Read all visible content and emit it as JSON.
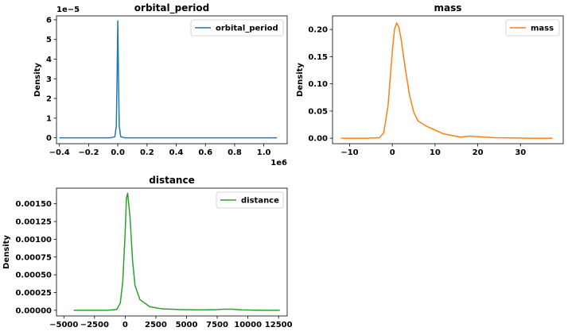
{
  "chart_data": [
    {
      "type": "line",
      "title": "orbital_period",
      "ylabel": "Density",
      "xlabel": "",
      "x_offset_label": "1e6",
      "y_offset_label": "1e−5",
      "xlim": [
        -0.42,
        1.16
      ],
      "ylim": [
        -0.3,
        6.2
      ],
      "xticks": [
        -0.4,
        -0.2,
        0.0,
        0.2,
        0.4,
        0.6,
        0.8,
        1.0
      ],
      "xtick_labels": [
        "−0.4",
        "−0.2",
        "0.0",
        "0.2",
        "0.4",
        "0.6",
        "0.8",
        "1.0"
      ],
      "yticks": [
        0,
        1,
        2,
        3,
        4,
        5,
        6
      ],
      "ytick_labels": [
        "0",
        "1",
        "2",
        "3",
        "4",
        "5",
        "6"
      ],
      "legend_position": "upper right",
      "series": [
        {
          "name": "orbital_period",
          "color": "#1f77b4",
          "x": [
            -0.4,
            -0.2,
            -0.05,
            -0.02,
            -0.01,
            -0.005,
            0.0,
            0.005,
            0.01,
            0.02,
            0.05,
            0.2,
            0.5,
            0.8,
            1.09
          ],
          "y": [
            0,
            0,
            0,
            0.05,
            0.6,
            3.0,
            5.95,
            3.0,
            0.6,
            0.05,
            0,
            0,
            0,
            0,
            0
          ]
        }
      ]
    },
    {
      "type": "line",
      "title": "mass",
      "ylabel": "Density",
      "xlabel": "",
      "xlim": [
        -14,
        40
      ],
      "ylim": [
        -0.01,
        0.225
      ],
      "xticks": [
        -10,
        0,
        10,
        20,
        30
      ],
      "xtick_labels": [
        "−10",
        "0",
        "10",
        "20",
        "30"
      ],
      "yticks": [
        0.0,
        0.05,
        0.1,
        0.15,
        0.2
      ],
      "ytick_labels": [
        "0.00",
        "0.05",
        "0.10",
        "0.15",
        "0.20"
      ],
      "legend_position": "upper right",
      "series": [
        {
          "name": "mass",
          "color": "#ff7f0e",
          "x": [
            -12,
            -6,
            -3,
            -2,
            -1,
            0,
            0.5,
            1,
            1.5,
            2,
            3,
            4,
            5,
            6,
            8,
            10,
            12,
            14,
            16,
            18,
            20,
            24,
            28,
            32,
            37.5
          ],
          "y": [
            0,
            0,
            0.001,
            0.01,
            0.06,
            0.16,
            0.2,
            0.212,
            0.205,
            0.185,
            0.13,
            0.08,
            0.048,
            0.032,
            0.022,
            0.015,
            0.008,
            0.005,
            0.002,
            0.004,
            0.003,
            0.001,
            0.0005,
            0,
            0
          ]
        }
      ]
    },
    {
      "type": "line",
      "title": "distance",
      "ylabel": "Density",
      "xlabel": "",
      "xlim": [
        -5600,
        13200
      ],
      "ylim": [
        -8e-05,
        0.00172
      ],
      "xticks": [
        -5000,
        -2500,
        0,
        2500,
        5000,
        7500,
        10000,
        12500
      ],
      "xtick_labels": [
        "−5000",
        "−2500",
        "0",
        "2500",
        "5000",
        "7500",
        "10000",
        "12500"
      ],
      "yticks": [
        0,
        0.00025,
        0.0005,
        0.00075,
        0.001,
        0.00125,
        0.0015
      ],
      "ytick_labels": [
        "0.00000",
        "0.00025",
        "0.00050",
        "0.00075",
        "0.00100",
        "0.00125",
        "0.00150"
      ],
      "legend_position": "upper right",
      "series": [
        {
          "name": "distance",
          "color": "#2ca02c",
          "x": [
            -4200,
            -1500,
            -700,
            -400,
            -200,
            0,
            100,
            200,
            400,
            600,
            800,
            1200,
            1600,
            2000,
            3000,
            4500,
            6000,
            7500,
            8000,
            8700,
            9500,
            11000,
            12600
          ],
          "y": [
            0,
            0,
            1e-05,
            0.0001,
            0.0004,
            0.0011,
            0.00158,
            0.00165,
            0.0013,
            0.0007,
            0.00035,
            0.00015,
            0.0001,
            5e-05,
            2e-05,
            1e-05,
            5e-06,
            1e-05,
            1.5e-05,
            1.5e-05,
            5e-06,
            0,
            0
          ]
        }
      ]
    }
  ]
}
